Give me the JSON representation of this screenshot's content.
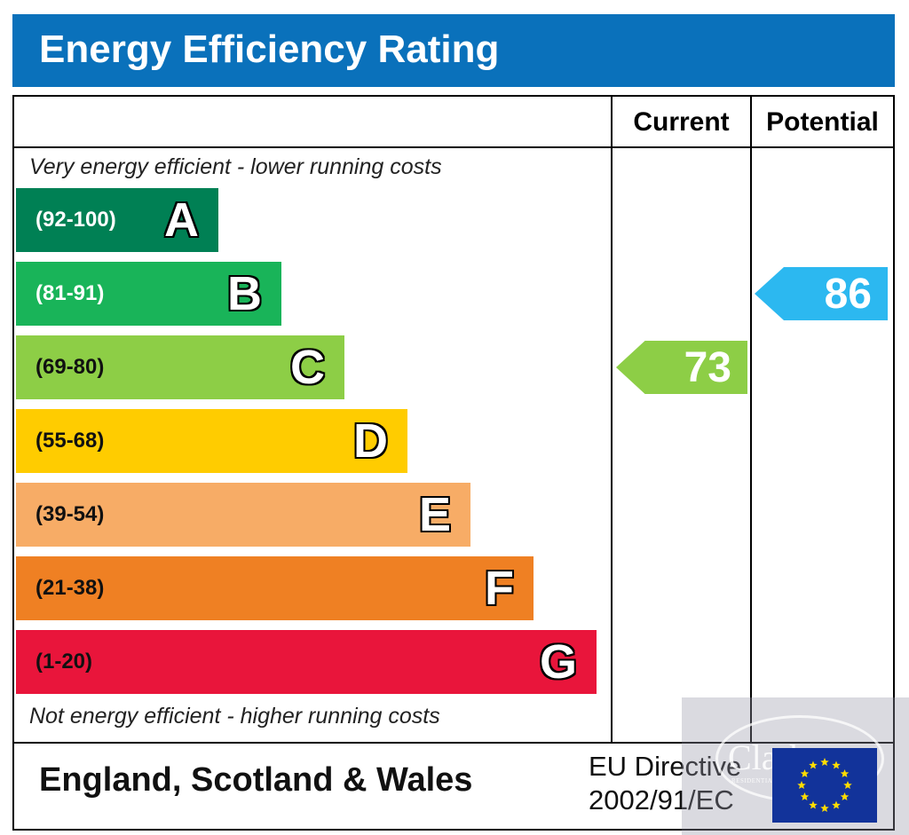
{
  "header": {
    "title": "Energy Efficiency Rating"
  },
  "columns": {
    "current": "Current",
    "potential": "Potential"
  },
  "notes": {
    "top": "Very energy efficient - lower running costs",
    "bottom": "Not energy efficient - higher running costs"
  },
  "chart_data": {
    "type": "bar",
    "title": "Energy Efficiency Rating",
    "categories": [
      "A",
      "B",
      "C",
      "D",
      "E",
      "F",
      "G"
    ],
    "bands": [
      {
        "letter": "A",
        "range": "(92-100)",
        "min": 92,
        "max": 100,
        "color": "#008054",
        "text_color": "#ffffff"
      },
      {
        "letter": "B",
        "range": "(81-91)",
        "min": 81,
        "max": 91,
        "color": "#19b459",
        "text_color": "#ffffff"
      },
      {
        "letter": "C",
        "range": "(69-80)",
        "min": 69,
        "max": 80,
        "color": "#8dce46",
        "text_color": "#111111"
      },
      {
        "letter": "D",
        "range": "(55-68)",
        "min": 55,
        "max": 68,
        "color": "#ffcc00",
        "text_color": "#111111"
      },
      {
        "letter": "E",
        "range": "(39-54)",
        "min": 39,
        "max": 54,
        "color": "#f7ac66",
        "text_color": "#111111"
      },
      {
        "letter": "F",
        "range": "(21-38)",
        "min": 21,
        "max": 38,
        "color": "#ef8023",
        "text_color": "#111111"
      },
      {
        "letter": "G",
        "range": "(1-20)",
        "min": 1,
        "max": 20,
        "color": "#e9153b",
        "text_color": "#111111"
      }
    ],
    "current": {
      "value": 73,
      "band": "C",
      "color": "#8dce46"
    },
    "potential": {
      "value": 86,
      "band": "B",
      "color": "#2cb8f0"
    }
  },
  "footer": {
    "region": "England, Scotland & Wales",
    "directive_line1": "EU Directive",
    "directive_line2": "2002/91/EC"
  },
  "watermark": {
    "name": "Clarkes",
    "tagline": "RESIDENTIAL SALES & LETTINGS AGENCY"
  },
  "colors": {
    "header": "#0a71bb",
    "eu_flag": "#12339a",
    "eu_star": "#ffdd00"
  }
}
